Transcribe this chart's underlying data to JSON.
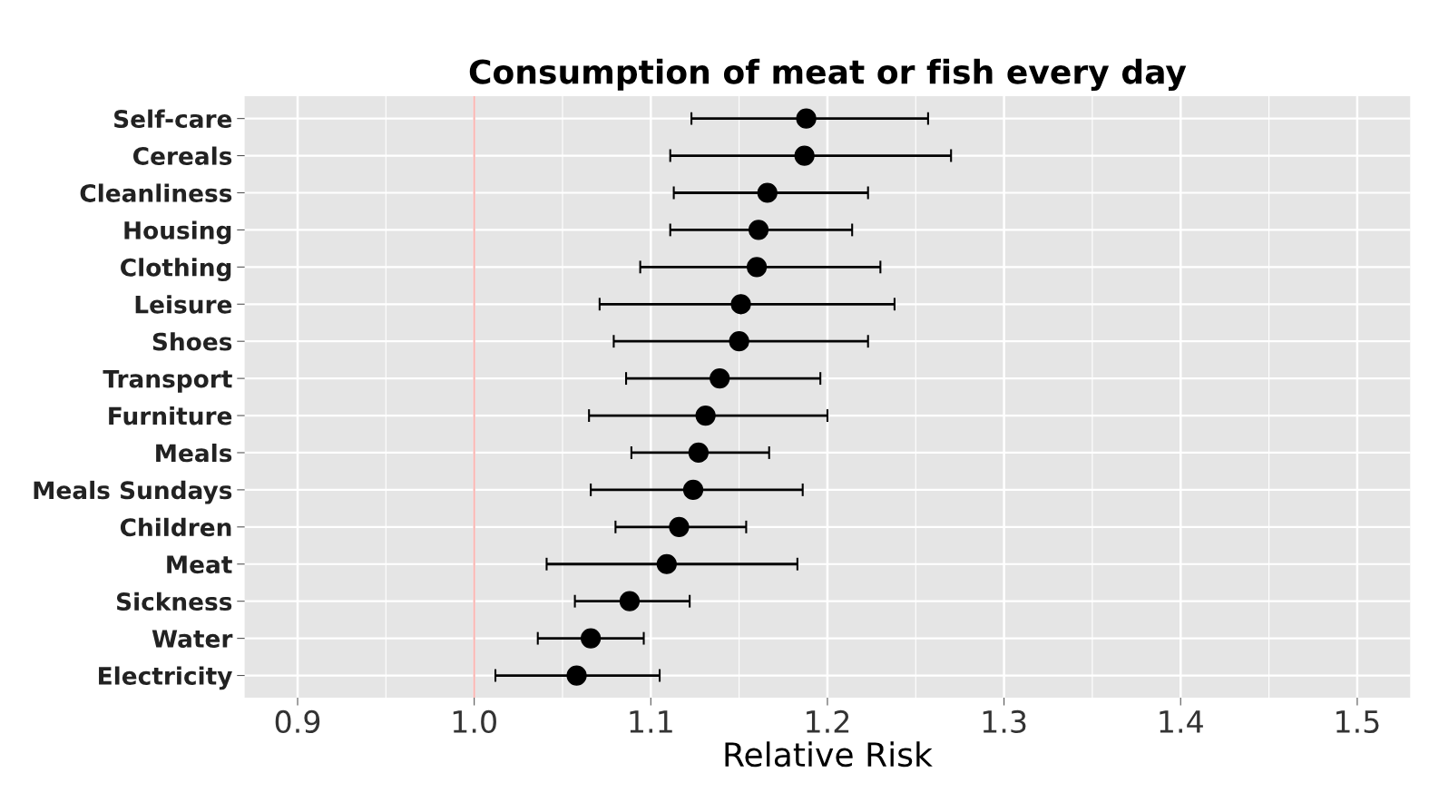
{
  "chart_data": {
    "type": "scatter",
    "title": "Consumption of meat or fish every day",
    "xlabel": "Relative Risk",
    "orientation": "horizontal",
    "categories": [
      "Self-care",
      "Cereals",
      "Cleanliness",
      "Housing",
      "Clothing",
      "Leisure",
      "Shoes",
      "Transport",
      "Furniture",
      "Meals",
      "Meals Sundays",
      "Children",
      "Meat",
      "Sickness",
      "Water",
      "Electricity"
    ],
    "values": [
      1.188,
      1.187,
      1.166,
      1.161,
      1.16,
      1.151,
      1.15,
      1.139,
      1.131,
      1.127,
      1.124,
      1.116,
      1.109,
      1.088,
      1.066,
      1.058
    ],
    "errors": [
      [
        1.123,
        1.257
      ],
      [
        1.111,
        1.27
      ],
      [
        1.113,
        1.223
      ],
      [
        1.111,
        1.214
      ],
      [
        1.094,
        1.23
      ],
      [
        1.071,
        1.238
      ],
      [
        1.079,
        1.223
      ],
      [
        1.086,
        1.196
      ],
      [
        1.065,
        1.2
      ],
      [
        1.089,
        1.167
      ],
      [
        1.066,
        1.186
      ],
      [
        1.08,
        1.154
      ],
      [
        1.041,
        1.183
      ],
      [
        1.057,
        1.122
      ],
      [
        1.036,
        1.096
      ],
      [
        1.012,
        1.105
      ]
    ],
    "color": "#000000",
    "marker": "circle",
    "xlim": [
      0.87,
      1.53
    ],
    "xticks": [
      0.9,
      {
        "value": 1.0,
        "label": "1.0"
      },
      1.1,
      1.2,
      1.3,
      1.4,
      1.5
    ],
    "ref_lines": [
      {
        "axis": "x",
        "value": 1.0,
        "color": "#f8b4b0"
      }
    ],
    "grid": true
  }
}
